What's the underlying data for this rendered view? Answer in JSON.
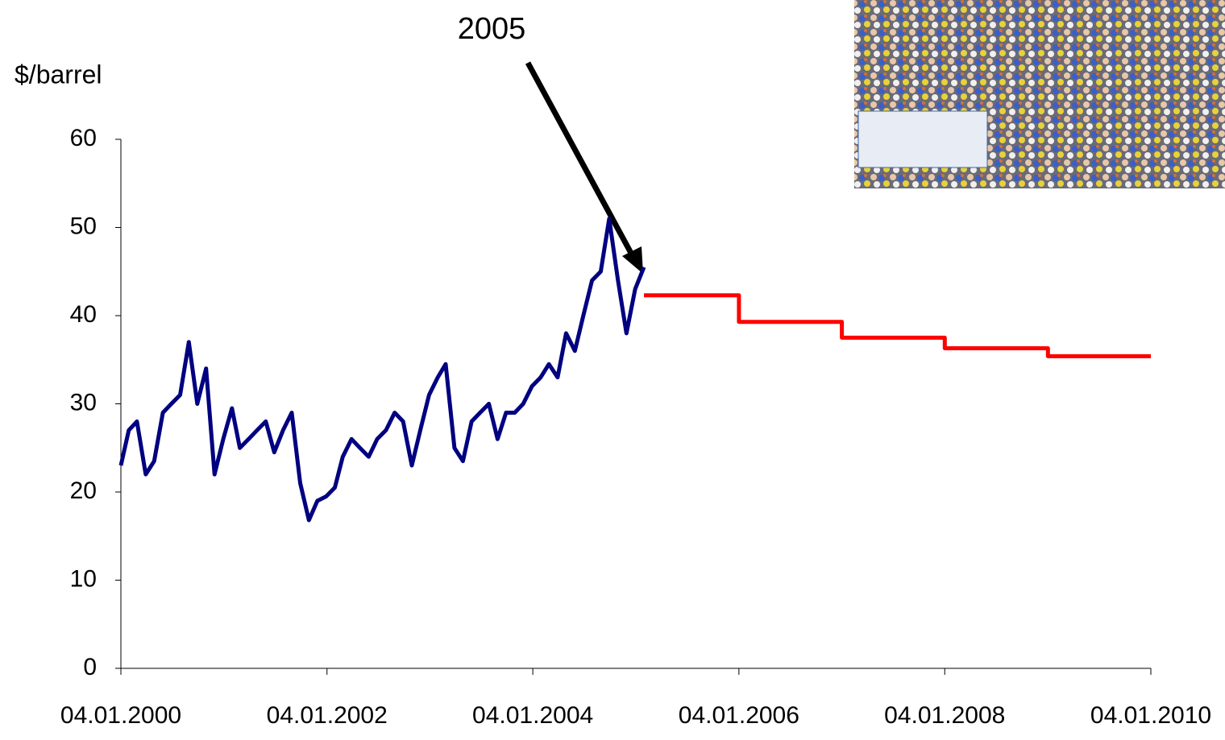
{
  "chart_data": {
    "type": "line",
    "y_label": "$/barrel",
    "annotation": "2005",
    "ylim": [
      0,
      60
    ],
    "yticks": [
      0,
      10,
      20,
      30,
      40,
      50,
      60
    ],
    "xlim": [
      "04.01.2000",
      "04.01.2010"
    ],
    "xticks": [
      "04.01.2000",
      "04.01.2002",
      "04.01.2004",
      "04.01.2006",
      "04.01.2008",
      "04.01.2010"
    ],
    "series": [
      {
        "color": "#000080",
        "x": [
          "04.01.2000",
          "01.02.2000",
          "01.03.2000",
          "01.04.2000",
          "01.05.2000",
          "01.06.2000",
          "01.07.2000",
          "01.08.2000",
          "01.09.2000",
          "01.10.2000",
          "01.11.2000",
          "01.12.2000",
          "01.01.2001",
          "01.02.2001",
          "01.03.2001",
          "01.04.2001",
          "01.05.2001",
          "01.06.2001",
          "01.07.2001",
          "01.08.2001",
          "01.09.2001",
          "01.10.2001",
          "01.11.2001",
          "01.12.2001",
          "01.01.2002",
          "01.02.2002",
          "01.03.2002",
          "01.04.2002",
          "01.05.2002",
          "01.06.2002",
          "01.07.2002",
          "01.08.2002",
          "01.09.2002",
          "01.10.2002",
          "01.11.2002",
          "01.12.2002",
          "01.01.2003",
          "01.02.2003",
          "01.03.2003",
          "01.04.2003",
          "01.05.2003",
          "01.06.2003",
          "01.07.2003",
          "01.08.2003",
          "01.09.2003",
          "01.10.2003",
          "01.11.2003",
          "01.12.2003",
          "01.01.2004",
          "01.02.2004",
          "01.03.2004",
          "01.04.2004",
          "01.05.2004",
          "01.06.2004",
          "01.07.2004",
          "01.08.2004",
          "01.09.2004",
          "01.10.2004",
          "01.11.2004",
          "01.12.2004",
          "01.01.2005",
          "01.02.2005"
        ],
        "values": [
          23,
          27,
          28,
          22,
          23.5,
          29,
          30,
          31,
          37,
          30,
          34,
          22,
          26,
          29.5,
          25,
          26,
          27,
          28,
          24.5,
          27,
          29,
          21,
          16.8,
          19,
          19.5,
          20.5,
          24,
          26,
          25,
          24,
          26,
          27,
          29,
          28,
          23,
          27,
          31,
          33,
          34.5,
          25,
          23.5,
          28,
          29,
          30,
          26,
          29,
          29,
          30,
          32,
          33,
          34.5,
          33,
          38,
          36,
          40,
          44,
          45,
          51,
          44,
          38,
          43,
          45.5
        ]
      },
      {
        "color": "#ff0000",
        "x": [
          "01.02.2005",
          "04.01.2006",
          "04.01.2006",
          "04.01.2007",
          "04.01.2007",
          "04.01.2008",
          "04.01.2008",
          "04.01.2009",
          "04.01.2009",
          "04.01.2010"
        ],
        "values": [
          42.3,
          42.3,
          39.3,
          39.3,
          37.5,
          37.5,
          36.3,
          36.3,
          35.4,
          35.4
        ]
      }
    ]
  }
}
